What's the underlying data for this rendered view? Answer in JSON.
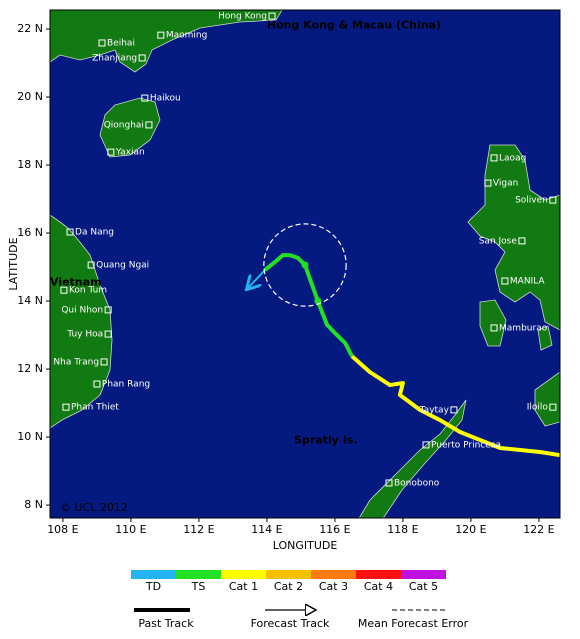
{
  "chart_data": {
    "type": "track-map",
    "xlabel": "LONGITUDE",
    "ylabel": "LATITUDE",
    "xlim": [
      107.62,
      122.62
    ],
    "ylim": [
      7.62,
      22.56
    ],
    "xticks": [
      {
        "value": 108,
        "label": "108 E"
      },
      {
        "value": 110,
        "label": "110 E"
      },
      {
        "value": 112,
        "label": "112 E"
      },
      {
        "value": 114,
        "label": "114 E"
      },
      {
        "value": 116,
        "label": "116 E"
      },
      {
        "value": 118,
        "label": "118 E"
      },
      {
        "value": 120,
        "label": "120 E"
      },
      {
        "value": 122,
        "label": "122 E"
      }
    ],
    "yticks": [
      {
        "value": 8,
        "label": "8 N"
      },
      {
        "value": 10,
        "label": "10 N"
      },
      {
        "value": 12,
        "label": "12 N"
      },
      {
        "value": 14,
        "label": "14 N"
      },
      {
        "value": 16,
        "label": "16 N"
      },
      {
        "value": 18,
        "label": "18 N"
      },
      {
        "value": 20,
        "label": "20 N"
      },
      {
        "value": 22,
        "label": "22 N"
      }
    ],
    "places": [
      {
        "name": "Hong Kong",
        "lon": 114.15,
        "lat": 22.38
      },
      {
        "name": "Beihai",
        "lon": 109.15,
        "lat": 21.59
      },
      {
        "name": "Maoming",
        "lon": 110.88,
        "lat": 21.82
      },
      {
        "name": "Zhanjiang",
        "lon": 110.33,
        "lat": 21.15
      },
      {
        "name": "Haikou",
        "lon": 110.41,
        "lat": 19.97
      },
      {
        "name": "Qionghai",
        "lon": 110.53,
        "lat": 19.18
      },
      {
        "name": "Yaxian",
        "lon": 109.41,
        "lat": 18.38
      },
      {
        "name": "Laoag",
        "lon": 120.68,
        "lat": 18.21
      },
      {
        "name": "Vigan",
        "lon": 120.5,
        "lat": 17.47
      },
      {
        "name": "Soliven",
        "lon": 122.41,
        "lat": 16.97
      },
      {
        "name": "San Jose",
        "lon": 121.5,
        "lat": 15.77
      },
      {
        "name": "MANILA",
        "lon": 121.0,
        "lat": 14.59
      },
      {
        "name": "Mamburao",
        "lon": 120.68,
        "lat": 13.21
      },
      {
        "name": "Da Nang",
        "lon": 108.21,
        "lat": 16.03
      },
      {
        "name": "Quang Ngai",
        "lon": 108.83,
        "lat": 15.06
      },
      {
        "name": "Kon Tum",
        "lon": 108.03,
        "lat": 14.32
      },
      {
        "name": "Qui Nhon",
        "lon": 109.33,
        "lat": 13.74
      },
      {
        "name": "Tuy Hoa",
        "lon": 109.33,
        "lat": 13.03
      },
      {
        "name": "Nha Trang",
        "lon": 109.21,
        "lat": 12.21
      },
      {
        "name": "Phan Rang",
        "lon": 109.0,
        "lat": 11.56
      },
      {
        "name": "Phan Thiet",
        "lon": 108.09,
        "lat": 10.88
      },
      {
        "name": "Taytay",
        "lon": 119.5,
        "lat": 10.8
      },
      {
        "name": "Puerto Princesa",
        "lon": 118.68,
        "lat": 9.77
      },
      {
        "name": "Bonobono",
        "lon": 117.59,
        "lat": 8.65
      },
      {
        "name": "Iloilo",
        "lon": 122.41,
        "lat": 10.88
      }
    ],
    "region_labels": [
      {
        "text": "Hong Kong & Macau (China)",
        "lon": 114.0,
        "lat": 22.1
      },
      {
        "text": "Vietnam",
        "lon": 107.62,
        "lat": 14.55
      },
      {
        "text": "Spratly Is.",
        "lon": 114.8,
        "lat": 9.9
      }
    ],
    "credit": "© UCL 2012",
    "categories": [
      {
        "label": "TD",
        "color": "#22b4f0"
      },
      {
        "label": "TS",
        "color": "#22e022"
      },
      {
        "label": "Cat 1",
        "color": "#ffff00"
      },
      {
        "label": "Cat 2",
        "color": "#f5c000"
      },
      {
        "label": "Cat 3",
        "color": "#ff7a10"
      },
      {
        "label": "Cat 4",
        "color": "#ff1010"
      },
      {
        "label": "Cat 5",
        "color": "#c010e0"
      }
    ],
    "track": [
      {
        "category": "Cat 1",
        "lon": [
          122.62,
          122.03,
          120.86,
          119.68,
          119.09,
          118.5,
          117.91,
          118.0,
          117.62,
          117.03,
          116.5
        ],
        "lat": [
          9.47,
          9.56,
          9.68,
          10.15,
          10.5,
          10.8,
          11.24,
          11.59,
          11.53,
          11.91,
          12.38
        ]
      },
      {
        "category": "TS",
        "lon": [
          116.5,
          116.3,
          116.0,
          115.77,
          115.62,
          115.5,
          115.33,
          115.12,
          114.91,
          114.68,
          114.47,
          114.24,
          113.94
        ],
        "lat": [
          12.38,
          12.77,
          13.06,
          13.3,
          13.68,
          14.0,
          14.47,
          15.06,
          15.27,
          15.35,
          15.35,
          15.15,
          14.91
        ]
      }
    ],
    "forecast": {
      "category": "TD",
      "lon": [
        113.94,
        113.44
      ],
      "lat": [
        14.91,
        14.38
      ]
    },
    "positions": {
      "lon": [
        115.5,
        115.12
      ],
      "lat": [
        14.0,
        15.06
      ]
    },
    "error_circle": {
      "lon": 115.12,
      "lat": 15.06,
      "radius": 1.21
    },
    "legend": {
      "past": "Past Track",
      "forecast": "Forecast Track",
      "error": "Mean Forecast Error"
    }
  }
}
